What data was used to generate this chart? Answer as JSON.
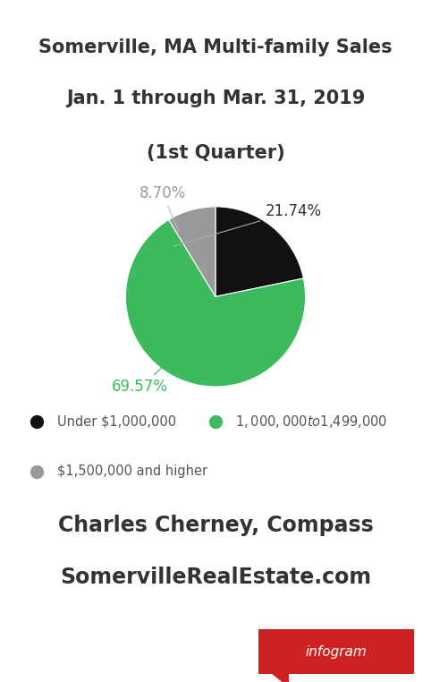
{
  "title_line1": "Somerville, MA Multi-family Sales",
  "title_line2": "Jan. 1 through Mar. 31, 2019",
  "title_line3": "(1st Quarter)",
  "slices": [
    21.74,
    69.57,
    8.7
  ],
  "slice_labels": [
    "21.74%",
    "69.57%",
    "8.70%"
  ],
  "slice_colors": [
    "#111111",
    "#3dba5e",
    "#999999"
  ],
  "legend_labels": [
    "Under $1,000,000",
    "$1,000,000 to $1,499,000",
    "$1,500,000 and higher"
  ],
  "legend_colors": [
    "#111111",
    "#3dba5e",
    "#999999"
  ],
  "footer_line1": "Charles Cherney, Compass",
  "footer_line2": "SomervilleRealEstate.com",
  "infogram_text": "infogram",
  "infogram_color": "#cc2222",
  "background_color": "#ffffff",
  "title_fontsize": 15,
  "footer_fontsize": 17,
  "label_fontsize": 12
}
